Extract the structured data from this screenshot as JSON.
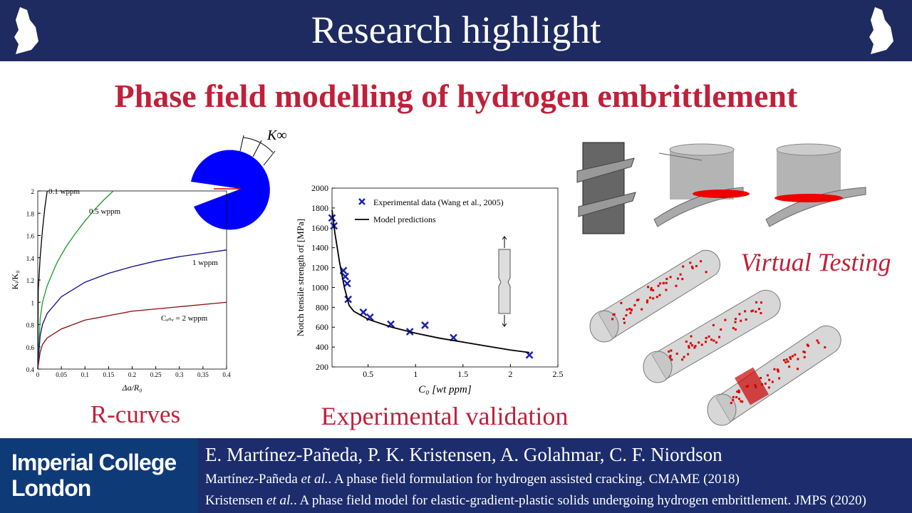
{
  "header": {
    "title": "Research highlight"
  },
  "title": "Phase field modelling of hydrogen embrittlement",
  "chart_data": [
    {
      "type": "line",
      "xlabel": "Δa/R₀",
      "ylabel": "Kᵢ/K₀",
      "xlim": [
        0,
        0.4
      ],
      "xticks": [
        0,
        0.05,
        0.1,
        0.15,
        0.2,
        0.25,
        0.3,
        0.35,
        0.4
      ],
      "ylim": [
        0.4,
        2
      ],
      "yticks": [
        0.4,
        0.6,
        0.8,
        1,
        1.2,
        1.4,
        1.6,
        1.8,
        2
      ],
      "series": [
        {
          "name": "0.1 wppm",
          "color": "#000000",
          "x": [
            0,
            0.001,
            0.005,
            0.01,
            0.015,
            0.02
          ],
          "values": [
            0.4,
            1.1,
            1.4,
            1.65,
            1.85,
            2.0
          ]
        },
        {
          "name": "0.5 wppm",
          "color": "#1a9a2a",
          "x": [
            0,
            0.005,
            0.01,
            0.02,
            0.04,
            0.06,
            0.08,
            0.1,
            0.12,
            0.14,
            0.16
          ],
          "values": [
            0.4,
            0.85,
            1.0,
            1.15,
            1.35,
            1.5,
            1.62,
            1.73,
            1.83,
            1.92,
            2.0
          ]
        },
        {
          "name": "1 wppm",
          "color": "#0a0a8a",
          "x": [
            0,
            0.005,
            0.01,
            0.02,
            0.05,
            0.1,
            0.15,
            0.2,
            0.25,
            0.3,
            0.35,
            0.4
          ],
          "values": [
            0.4,
            0.7,
            0.8,
            0.9,
            1.05,
            1.18,
            1.26,
            1.32,
            1.37,
            1.41,
            1.44,
            1.47
          ]
        },
        {
          "name": "Cₑₙᵥ = 2 wppm",
          "color": "#8a0a0a",
          "x": [
            0,
            0.005,
            0.01,
            0.02,
            0.05,
            0.1,
            0.15,
            0.2,
            0.25,
            0.3,
            0.35,
            0.4
          ],
          "values": [
            0.4,
            0.55,
            0.62,
            0.68,
            0.76,
            0.84,
            0.88,
            0.92,
            0.94,
            0.96,
            0.98,
            1.0
          ]
        }
      ]
    },
    {
      "type": "scatter",
      "xlabel": "C₀ [wt ppm]",
      "ylabel": "Notch tensile strength σf [MPa]",
      "xlim": [
        0.12,
        2.5
      ],
      "xticks": [
        0.5,
        1,
        1.5,
        2,
        2.5
      ],
      "ylim": [
        200,
        2000
      ],
      "yticks": [
        200,
        400,
        600,
        800,
        1000,
        1200,
        1400,
        1600,
        1800,
        2000
      ],
      "series": [
        {
          "name": "Experimental data (Wang et al., 2005)",
          "type": "scatter",
          "color": "#1a22b4",
          "x": [
            0.12,
            0.14,
            0.24,
            0.26,
            0.28,
            0.29,
            0.45,
            0.52,
            0.74,
            0.94,
            1.1,
            1.4,
            2.2
          ],
          "values": [
            1700,
            1620,
            1170,
            1110,
            1040,
            880,
            750,
            700,
            630,
            555,
            620,
            495,
            320
          ]
        },
        {
          "name": "Model predictions",
          "type": "line",
          "color": "#000000",
          "x": [
            0.12,
            0.15,
            0.2,
            0.25,
            0.3,
            0.35,
            0.5,
            0.75,
            1,
            1.25,
            1.5,
            1.75,
            2,
            2.2
          ],
          "values": [
            1780,
            1550,
            1250,
            1000,
            820,
            760,
            680,
            600,
            540,
            490,
            450,
            410,
            370,
            345
          ]
        }
      ]
    }
  ],
  "illustration": {
    "label": "K∞"
  },
  "captions": [
    "R-curves",
    "Experimental validation",
    "Virtual Testing"
  ],
  "footer": {
    "logo": [
      "Imperial College",
      "London"
    ],
    "authors": "E. Martínez-Pañeda, P. K. Kristensen, A. Golahmar, C. F. Niordson",
    "references": [
      {
        "author": "Martínez-Pañeda",
        "etal": "et al.",
        "rest": ". A phase field formulation for hydrogen assisted cracking. CMAME (2018)"
      },
      {
        "author": "Kristensen",
        "etal": "et al.",
        "rest": ". A phase field model for elastic-gradient-plastic solids undergoing hydrogen embrittlement. JMPS (2020)"
      }
    ]
  }
}
